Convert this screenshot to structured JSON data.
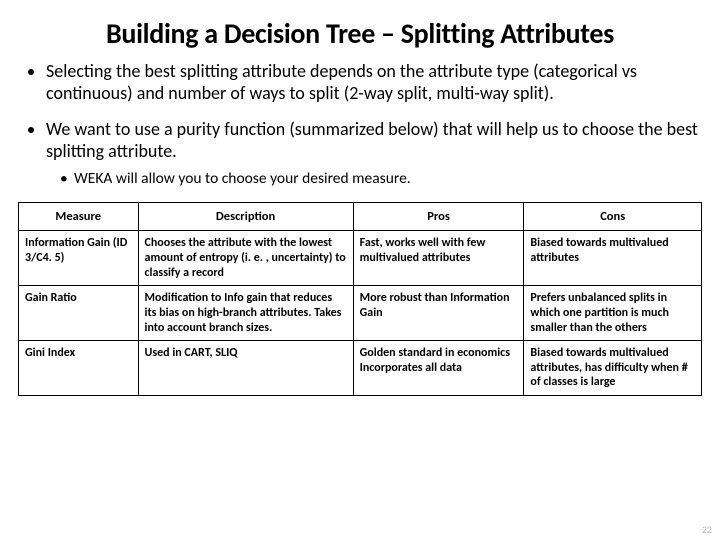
{
  "title": "Building a Decision Tree – Splitting Attributes",
  "bullets": {
    "b1": "Selecting the best splitting attribute depends on the attribute type (categorical vs continuous) and number of ways to split (2-way split, multi-way split).",
    "b2": "We want to use a purity function (summarized below) that will help us to choose the best splitting attribute.",
    "b2_sub": "WEKA will allow you to choose your desired measure."
  },
  "table": {
    "headers": {
      "h1": "Measure",
      "h2": "Description",
      "h3": "Pros",
      "h4": "Cons"
    },
    "rows": [
      {
        "measure": "Information Gain (ID 3/C4. 5)",
        "desc": "Chooses the attribute with the lowest amount of entropy (i. e. , uncertainty) to classify a record",
        "pros": "Fast, works well with few multivalued attributes",
        "cons": "Biased towards multivalued attributes"
      },
      {
        "measure": "Gain Ratio",
        "desc": "Modification to Info gain that reduces its bias on high-branch attributes. Takes into account branch sizes.",
        "pros": "More robust than Information Gain",
        "cons": "Prefers unbalanced splits in which one partition is much smaller than the others"
      },
      {
        "measure": "Gini Index",
        "desc": "Used in CART, SLIQ",
        "pros": "Golden standard in economics Incorporates all data",
        "cons": "Biased towards multivalued attributes, has difficulty when # of classes is large"
      }
    ]
  },
  "pageNumber": "22"
}
